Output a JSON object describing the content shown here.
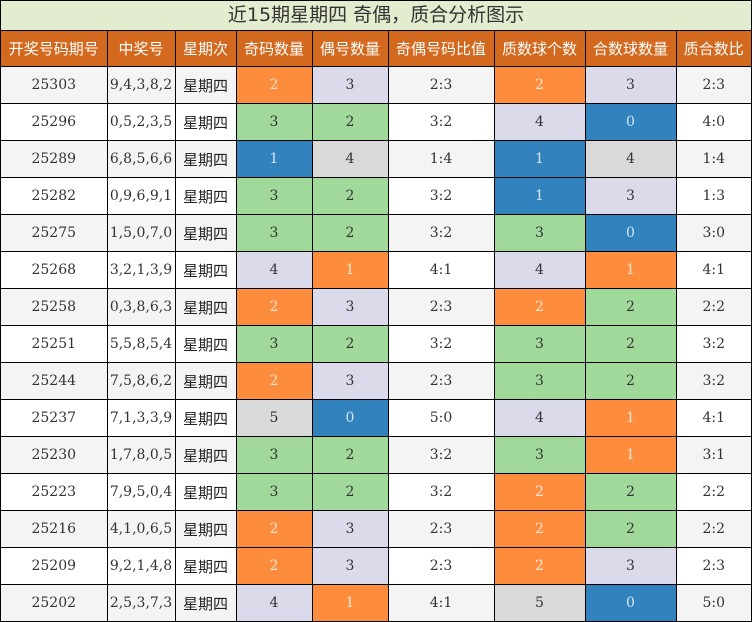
{
  "title": "近15期星期四 奇偶，质合分析图示",
  "colors": {
    "header_bg": "#d2691e",
    "title_bg": "#e2eccf",
    "orange": "#fd8c3d",
    "lavender": "#dadaeb",
    "green": "#a1d99b",
    "blue": "#3182bd",
    "gray": "#d9d9d9"
  },
  "headers": [
    "开奖号码期号",
    "中奖号",
    "星期次",
    "奇码数量",
    "偶号数量",
    "奇偶号码比值",
    "质数球个数",
    "合数球数量",
    "质合数比"
  ],
  "rows": [
    {
      "issue": "25303",
      "numbers": "9,4,3,8,2",
      "weekday": "星期四",
      "odd": "2",
      "even": "3",
      "odd_even_ratio": "2:3",
      "prime": "2",
      "composite": "3",
      "prime_comp_ratio": "2:3"
    },
    {
      "issue": "25296",
      "numbers": "0,5,2,3,5",
      "weekday": "星期四",
      "odd": "3",
      "even": "2",
      "odd_even_ratio": "3:2",
      "prime": "4",
      "composite": "0",
      "prime_comp_ratio": "4:0"
    },
    {
      "issue": "25289",
      "numbers": "6,8,5,6,6",
      "weekday": "星期四",
      "odd": "1",
      "even": "4",
      "odd_even_ratio": "1:4",
      "prime": "1",
      "composite": "4",
      "prime_comp_ratio": "1:4"
    },
    {
      "issue": "25282",
      "numbers": "0,9,6,9,1",
      "weekday": "星期四",
      "odd": "3",
      "even": "2",
      "odd_even_ratio": "3:2",
      "prime": "1",
      "composite": "3",
      "prime_comp_ratio": "1:3"
    },
    {
      "issue": "25275",
      "numbers": "1,5,0,7,0",
      "weekday": "星期四",
      "odd": "3",
      "even": "2",
      "odd_even_ratio": "3:2",
      "prime": "3",
      "composite": "0",
      "prime_comp_ratio": "3:0"
    },
    {
      "issue": "25268",
      "numbers": "3,2,1,3,9",
      "weekday": "星期四",
      "odd": "4",
      "even": "1",
      "odd_even_ratio": "4:1",
      "prime": "4",
      "composite": "1",
      "prime_comp_ratio": "4:1"
    },
    {
      "issue": "25258",
      "numbers": "0,3,8,6,3",
      "weekday": "星期四",
      "odd": "2",
      "even": "3",
      "odd_even_ratio": "2:3",
      "prime": "2",
      "composite": "2",
      "prime_comp_ratio": "2:2"
    },
    {
      "issue": "25251",
      "numbers": "5,5,8,5,4",
      "weekday": "星期四",
      "odd": "3",
      "even": "2",
      "odd_even_ratio": "3:2",
      "prime": "3",
      "composite": "2",
      "prime_comp_ratio": "3:2"
    },
    {
      "issue": "25244",
      "numbers": "7,5,8,6,2",
      "weekday": "星期四",
      "odd": "2",
      "even": "3",
      "odd_even_ratio": "2:3",
      "prime": "3",
      "composite": "2",
      "prime_comp_ratio": "3:2"
    },
    {
      "issue": "25237",
      "numbers": "7,1,3,3,9",
      "weekday": "星期四",
      "odd": "5",
      "even": "0",
      "odd_even_ratio": "5:0",
      "prime": "4",
      "composite": "1",
      "prime_comp_ratio": "4:1"
    },
    {
      "issue": "25230",
      "numbers": "1,7,8,0,5",
      "weekday": "星期四",
      "odd": "3",
      "even": "2",
      "odd_even_ratio": "3:2",
      "prime": "3",
      "composite": "1",
      "prime_comp_ratio": "3:1"
    },
    {
      "issue": "25223",
      "numbers": "7,9,5,0,4",
      "weekday": "星期四",
      "odd": "3",
      "even": "2",
      "odd_even_ratio": "3:2",
      "prime": "2",
      "composite": "2",
      "prime_comp_ratio": "2:2"
    },
    {
      "issue": "25216",
      "numbers": "4,1,0,6,5",
      "weekday": "星期四",
      "odd": "2",
      "even": "3",
      "odd_even_ratio": "2:3",
      "prime": "2",
      "composite": "2",
      "prime_comp_ratio": "2:2"
    },
    {
      "issue": "25209",
      "numbers": "9,2,1,4,8",
      "weekday": "星期四",
      "odd": "2",
      "even": "3",
      "odd_even_ratio": "2:3",
      "prime": "2",
      "composite": "3",
      "prime_comp_ratio": "2:3"
    },
    {
      "issue": "25202",
      "numbers": "2,5,3,7,3",
      "weekday": "星期四",
      "odd": "4",
      "even": "1",
      "odd_even_ratio": "4:1",
      "prime": "5",
      "composite": "0",
      "prime_comp_ratio": "5:0"
    }
  ]
}
